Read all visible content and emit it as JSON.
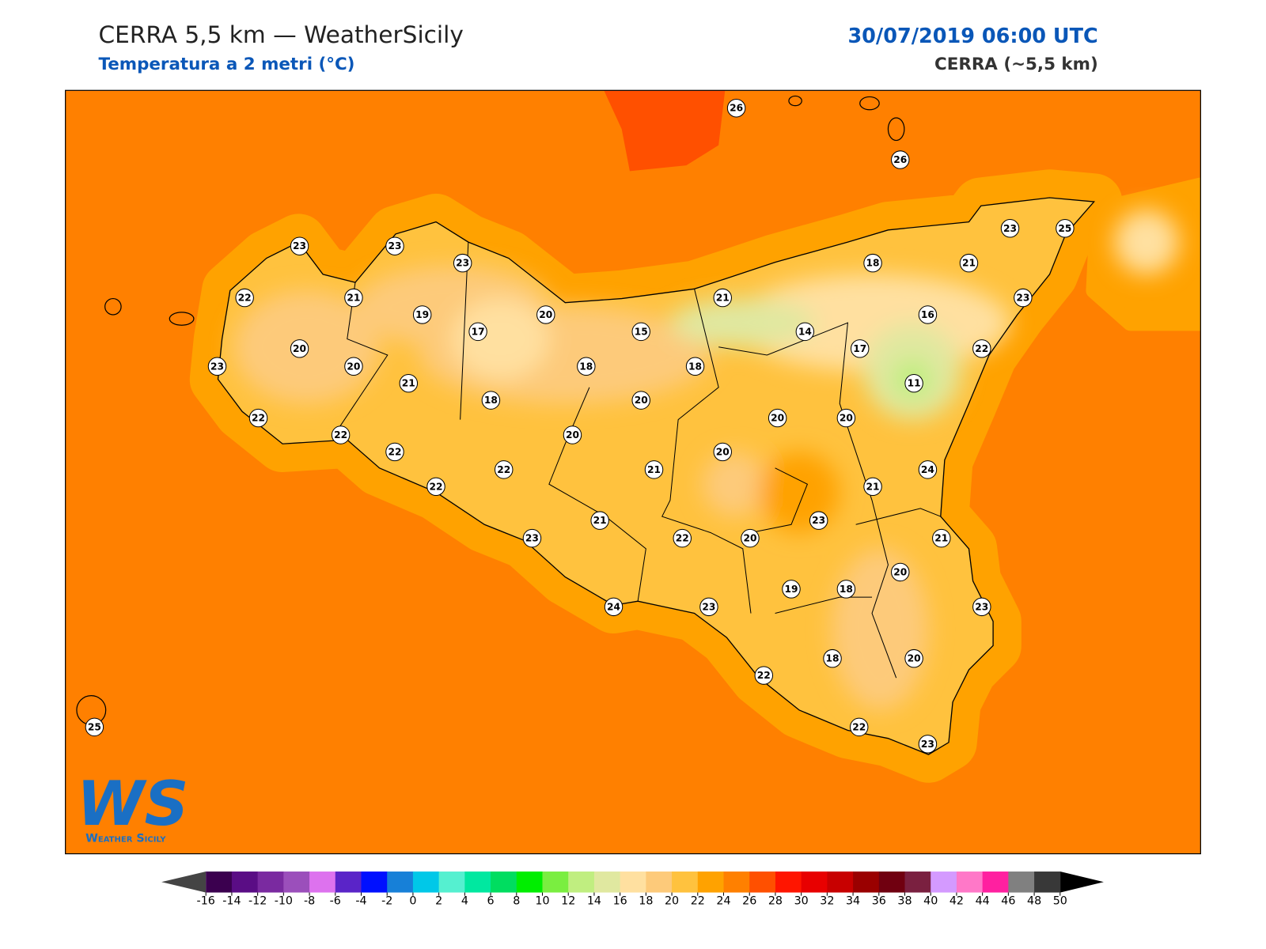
{
  "header": {
    "title": "CERRA 5,5 km — WeatherSicily",
    "subtitle": "Temperatura a 2 metri (°C)",
    "datetime": "30/07/2019 06:00 UTC",
    "model": "CERRA (~5,5 km)"
  },
  "stations": [
    26,
    26,
    23,
    23,
    23,
    23,
    25,
    18,
    21,
    22,
    21,
    19,
    20,
    21,
    23,
    16,
    17,
    15,
    14,
    17,
    20,
    23,
    20,
    18,
    18,
    22,
    11,
    21,
    18,
    20,
    22,
    22,
    20,
    20,
    20,
    22,
    20,
    22,
    21,
    24,
    22,
    21,
    21,
    23,
    23,
    22,
    20,
    21,
    20,
    19,
    18,
    24,
    23,
    23,
    18,
    20,
    22,
    22,
    23,
    25
  ],
  "colorbar": {
    "ticks": [
      -16,
      -14,
      -12,
      -10,
      -8,
      -6,
      -4,
      -2,
      0,
      2,
      4,
      6,
      8,
      10,
      12,
      14,
      16,
      18,
      20,
      22,
      24,
      26,
      28,
      30,
      32,
      34,
      36,
      38,
      40,
      42,
      44,
      46,
      48,
      50
    ],
    "colors": [
      "#3b004f",
      "#5a0d85",
      "#7a2aa0",
      "#9b4fbb",
      "#dd72ee",
      "#5a24c8",
      "#0010ff",
      "#1780d8",
      "#00c8e8",
      "#55f0d0",
      "#00e8a0",
      "#00dd60",
      "#00ee00",
      "#7aee40",
      "#c0ee80",
      "#e0e8a0",
      "#ffe0a0",
      "#fdca7a",
      "#ffc23e",
      "#ffa200",
      "#ff8000",
      "#ff5000",
      "#ff1500",
      "#e80000",
      "#c80000",
      "#9a0000",
      "#700010",
      "#7a2040",
      "#d49aff",
      "#ff78c8",
      "#ff20a0",
      "#808080",
      "#383838"
    ],
    "under_color": "#444444",
    "over_color": "#000000"
  },
  "logo": {
    "mark": "WS",
    "text": "Weather Sicily"
  }
}
